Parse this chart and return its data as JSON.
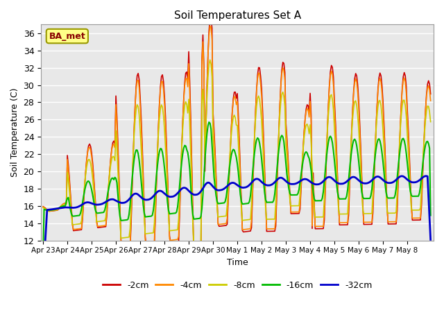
{
  "title": "Soil Temperatures Set A",
  "xlabel": "Time",
  "ylabel": "Soil Temperature (C)",
  "ylim": [
    12,
    37
  ],
  "yticks": [
    12,
    14,
    16,
    18,
    20,
    22,
    24,
    26,
    28,
    30,
    32,
    34,
    36
  ],
  "background_color": "#e8e8e8",
  "label_text": "BA_met",
  "x_labels": [
    "Apr 23",
    "Apr 24",
    "Apr 25",
    "Apr 26",
    "Apr 27",
    "Apr 28",
    "Apr 29",
    "Apr 30",
    "May 1",
    "May 2",
    "May 3",
    "May 4",
    "May 5",
    "May 6",
    "May 7",
    "May 8"
  ],
  "colors": {
    "-2cm": "#cc0000",
    "-4cm": "#ff8800",
    "-8cm": "#cccc00",
    "-16cm": "#00bb00",
    "-32cm": "#0000cc"
  },
  "linewidths": {
    "-2cm": 1.2,
    "-4cm": 1.2,
    "-8cm": 1.2,
    "-16cm": 1.5,
    "-32cm": 2.0
  }
}
